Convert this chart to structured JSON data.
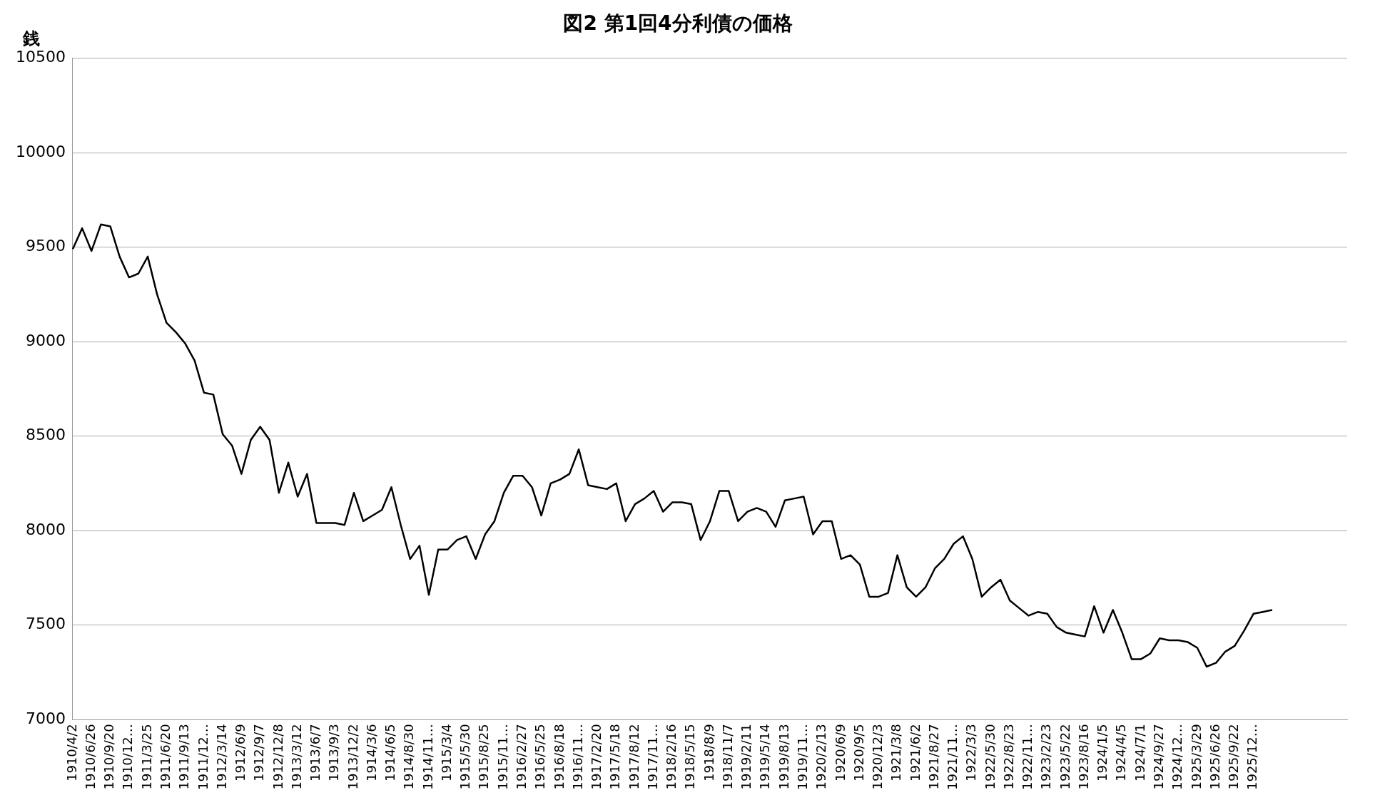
{
  "chart_data": {
    "type": "line",
    "title": "図2 第1回4分利債の価格",
    "ylabel": "銭",
    "categories": [
      "1910/4/2",
      null,
      "1910/6/26",
      null,
      "1910/9/20",
      null,
      "1910/12…",
      null,
      "1911/3/25",
      null,
      "1911/6/20",
      null,
      "1911/9/13",
      null,
      "1911/12…",
      null,
      "1912/3/14",
      null,
      "1912/6/9",
      null,
      "1912/9/7",
      null,
      "1912/12/8",
      null,
      "1913/3/12",
      null,
      "1913/6/7",
      null,
      "1913/9/3",
      null,
      "1913/12/2",
      null,
      "1914/3/6",
      null,
      "1914/6/5",
      null,
      "1914/8/30",
      null,
      "1914/11…",
      null,
      "1915/3/4",
      null,
      "1915/5/30",
      null,
      "1915/8/25",
      null,
      "1915/11…",
      null,
      "1916/2/27",
      null,
      "1916/5/25",
      null,
      "1916/8/18",
      null,
      "1916/11…",
      null,
      "1917/2/20",
      null,
      "1917/5/18",
      null,
      "1917/8/12",
      null,
      "1917/11…",
      null,
      "1918/2/16",
      null,
      "1918/5/15",
      null,
      "1918/8/9",
      null,
      "1918/11/7",
      null,
      "1919/2/11",
      null,
      "1919/5/14",
      null,
      "1919/8/13",
      null,
      "1919/11…",
      null,
      "1920/2/13",
      null,
      "1920/6/9",
      null,
      "1920/9/5",
      null,
      "1920/12/3",
      null,
      "1921/3/8",
      null,
      "1921/6/2",
      null,
      "1921/8/27",
      null,
      "1921/11…",
      null,
      "1922/3/3",
      null,
      "1922/5/30",
      null,
      "1922/8/23",
      null,
      "1922/11…",
      null,
      "1923/2/23",
      null,
      "1923/5/22",
      null,
      "1923/8/16",
      null,
      "1924/1/5",
      null,
      "1924/4/5",
      null,
      "1924/7/1",
      null,
      "1924/9/27",
      null,
      "1924/12…",
      null,
      "1925/3/29",
      null,
      "1925/6/26",
      null,
      "1925/9/22",
      null,
      "1925/12…",
      null,
      null,
      null,
      null,
      null,
      null,
      null,
      null,
      null,
      null
    ],
    "series": [
      {
        "color": "#000000",
        "values": [
          9490,
          9600,
          9480,
          9620,
          9610,
          9450,
          9340,
          9360,
          9450,
          9250,
          9100,
          9050,
          8990,
          8900,
          8730,
          8720,
          8510,
          8450,
          8300,
          8480,
          8550,
          8480,
          8200,
          8360,
          8180,
          8300,
          8040,
          8040,
          8040,
          8030,
          8200,
          8050,
          8080,
          8110,
          8230,
          8030,
          7850,
          7920,
          7660,
          7900,
          7900,
          7950,
          7970,
          7850,
          7980,
          8050,
          8200,
          8290,
          8290,
          8230,
          8080,
          8250,
          8270,
          8300,
          8430,
          8240,
          8230,
          8220,
          8250,
          8050,
          8140,
          8170,
          8210,
          8100,
          8150,
          8150,
          8140,
          7950,
          8050,
          8210,
          8210,
          8050,
          8100,
          8120,
          8100,
          8020,
          8160,
          8170,
          8180,
          7980,
          8050,
          8050,
          7850,
          7870,
          7820,
          7650,
          7650,
          7670,
          7870,
          7700,
          7650,
          7700,
          7800,
          7850,
          7930,
          7970,
          7850,
          7650,
          7700,
          7740,
          7630,
          7590,
          7550,
          7570,
          7560,
          7490,
          7460,
          7450,
          7440,
          7600,
          7460,
          7580,
          7460,
          7320,
          7320,
          7350,
          7430,
          7420,
          7420,
          7410,
          7380,
          7280,
          7300,
          7360,
          7390,
          7470,
          7560,
          7570,
          7580,
          null,
          null,
          null,
          null,
          null,
          null,
          null,
          null
        ]
      }
    ],
    "ylim": [
      7000,
      10500
    ],
    "yticks": [
      7000,
      7500,
      8000,
      8500,
      9000,
      9500,
      10000,
      10500
    ],
    "grid": "y",
    "legend": false,
    "marker": "none",
    "line_style": "solid"
  }
}
